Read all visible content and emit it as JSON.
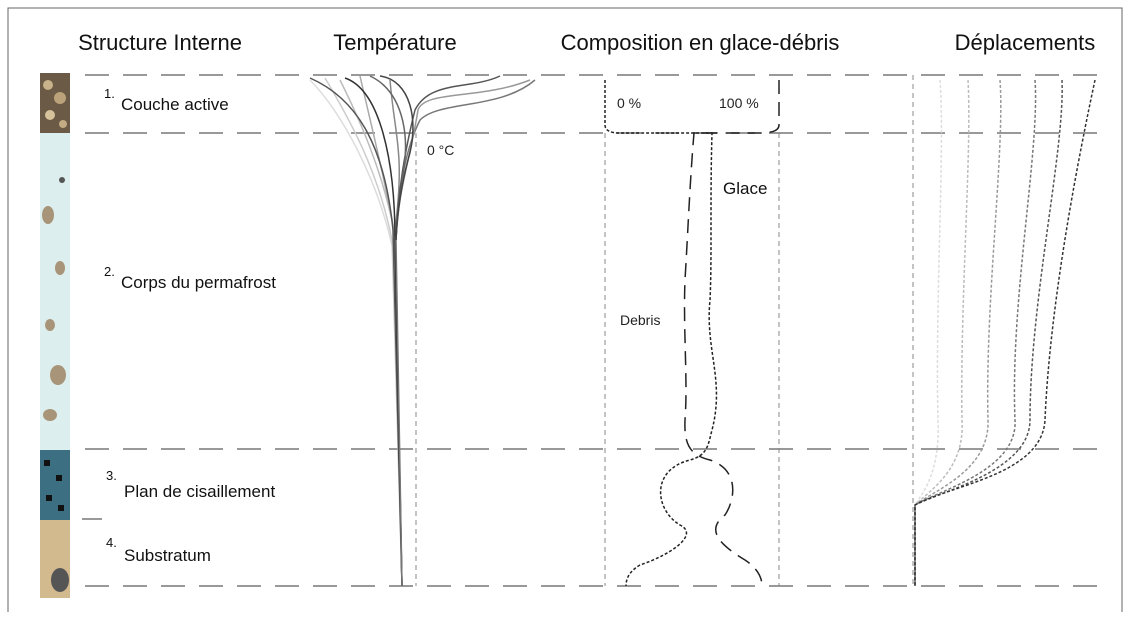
{
  "headers": [
    "Structure Interne",
    "Température",
    "Composition en glace-débris",
    "Déplacements"
  ],
  "layers": [
    {
      "number": "1.",
      "label": "Couche active"
    },
    {
      "number": "2.",
      "label": "Corps du permafrost"
    },
    {
      "number": "3.",
      "label": "Plan de cisaillement"
    },
    {
      "number": "4.",
      "label": "Substratum"
    }
  ],
  "temperature": {
    "zero_label": "0 °C"
  },
  "composition": {
    "min_label": "0 %",
    "max_label": "100 %",
    "ice_label": "Glace",
    "debris_label": "Debris"
  }
}
